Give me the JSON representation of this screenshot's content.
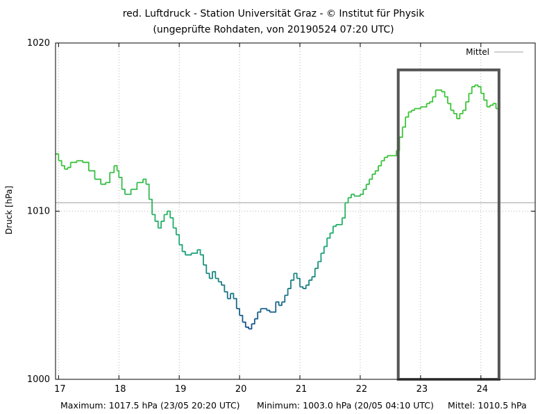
{
  "colors": {
    "background": "#ffffff",
    "axis": "#000000",
    "grid": "#a0a0a0",
    "mean_line": "#a0a0a0",
    "highlight_box": "#555555",
    "line_low": "#1a4f8f",
    "line_mid": "#1aa877",
    "line_high": "#3ec43a"
  },
  "chart_data": {
    "type": "line",
    "title": "red. Luftdruck - Station Universität Graz -  © Institut für Physik",
    "subtitle": "(ungeprüfte Rohdaten, von 20190524 07:20 UTC)",
    "xlabel": "",
    "ylabel": "Druck [hPa]",
    "xlim": [
      16.95,
      24.9
    ],
    "ylim": [
      1000,
      1020
    ],
    "x_ticks": [
      17,
      18,
      19,
      20,
      21,
      22,
      23,
      24
    ],
    "y_ticks": [
      1000,
      1010,
      1020
    ],
    "grid": true,
    "legend": {
      "position": "top-right",
      "entries": [
        "Mittel"
      ]
    },
    "mean_value": 1010.5,
    "series": [
      {
        "points": [
          [
            16.95,
            1013.4
          ],
          [
            17.0,
            1013.0
          ],
          [
            17.05,
            1012.7
          ],
          [
            17.1,
            1012.5
          ],
          [
            17.15,
            1012.6
          ],
          [
            17.2,
            1012.9
          ],
          [
            17.3,
            1013.0
          ],
          [
            17.4,
            1012.9
          ],
          [
            17.5,
            1012.4
          ],
          [
            17.6,
            1011.9
          ],
          [
            17.7,
            1011.6
          ],
          [
            17.78,
            1011.7
          ],
          [
            17.85,
            1012.3
          ],
          [
            17.92,
            1012.7
          ],
          [
            17.97,
            1012.4
          ],
          [
            18.0,
            1012.0
          ],
          [
            18.05,
            1011.3
          ],
          [
            18.1,
            1011.0
          ],
          [
            18.2,
            1011.3
          ],
          [
            18.3,
            1011.7
          ],
          [
            18.4,
            1011.9
          ],
          [
            18.45,
            1011.6
          ],
          [
            18.5,
            1010.7
          ],
          [
            18.55,
            1009.8
          ],
          [
            18.6,
            1009.4
          ],
          [
            18.65,
            1009.0
          ],
          [
            18.7,
            1009.4
          ],
          [
            18.75,
            1009.8
          ],
          [
            18.8,
            1010.0
          ],
          [
            18.85,
            1009.6
          ],
          [
            18.9,
            1009.0
          ],
          [
            18.95,
            1008.6
          ],
          [
            19.0,
            1008.0
          ],
          [
            19.05,
            1007.6
          ],
          [
            19.1,
            1007.4
          ],
          [
            19.2,
            1007.5
          ],
          [
            19.3,
            1007.7
          ],
          [
            19.35,
            1007.4
          ],
          [
            19.4,
            1006.8
          ],
          [
            19.45,
            1006.3
          ],
          [
            19.5,
            1006.0
          ],
          [
            19.55,
            1006.4
          ],
          [
            19.6,
            1006.0
          ],
          [
            19.65,
            1005.8
          ],
          [
            19.7,
            1005.6
          ],
          [
            19.75,
            1005.2
          ],
          [
            19.8,
            1004.8
          ],
          [
            19.85,
            1005.1
          ],
          [
            19.9,
            1004.8
          ],
          [
            19.95,
            1004.2
          ],
          [
            20.0,
            1003.8
          ],
          [
            20.05,
            1003.4
          ],
          [
            20.1,
            1003.1
          ],
          [
            20.15,
            1003.0
          ],
          [
            20.2,
            1003.3
          ],
          [
            20.25,
            1003.6
          ],
          [
            20.3,
            1004.0
          ],
          [
            20.35,
            1004.2
          ],
          [
            20.45,
            1004.1
          ],
          [
            20.5,
            1004.0
          ],
          [
            20.55,
            1004.0
          ],
          [
            20.6,
            1004.6
          ],
          [
            20.65,
            1004.4
          ],
          [
            20.7,
            1004.6
          ],
          [
            20.75,
            1005.0
          ],
          [
            20.8,
            1005.4
          ],
          [
            20.85,
            1005.9
          ],
          [
            20.9,
            1006.3
          ],
          [
            20.95,
            1006.0
          ],
          [
            21.0,
            1005.5
          ],
          [
            21.05,
            1005.4
          ],
          [
            21.1,
            1005.6
          ],
          [
            21.15,
            1005.9
          ],
          [
            21.2,
            1006.1
          ],
          [
            21.25,
            1006.6
          ],
          [
            21.3,
            1007.0
          ],
          [
            21.35,
            1007.5
          ],
          [
            21.4,
            1007.9
          ],
          [
            21.45,
            1008.4
          ],
          [
            21.5,
            1008.7
          ],
          [
            21.55,
            1009.1
          ],
          [
            21.6,
            1009.2
          ],
          [
            21.65,
            1009.2
          ],
          [
            21.7,
            1009.6
          ],
          [
            21.75,
            1010.5
          ],
          [
            21.8,
            1010.8
          ],
          [
            21.85,
            1011.0
          ],
          [
            21.9,
            1010.9
          ],
          [
            21.95,
            1010.9
          ],
          [
            22.0,
            1011.0
          ],
          [
            22.05,
            1011.3
          ],
          [
            22.1,
            1011.6
          ],
          [
            22.15,
            1011.9
          ],
          [
            22.2,
            1012.2
          ],
          [
            22.25,
            1012.4
          ],
          [
            22.3,
            1012.7
          ],
          [
            22.35,
            1013.0
          ],
          [
            22.4,
            1013.2
          ],
          [
            22.45,
            1013.3
          ],
          [
            22.5,
            1013.3
          ],
          [
            22.55,
            1013.3
          ],
          [
            22.6,
            1013.6
          ],
          [
            22.65,
            1014.4
          ],
          [
            22.7,
            1015.0
          ],
          [
            22.75,
            1015.6
          ],
          [
            22.8,
            1015.9
          ],
          [
            22.85,
            1016.0
          ],
          [
            22.9,
            1016.1
          ],
          [
            22.95,
            1016.1
          ],
          [
            23.0,
            1016.2
          ],
          [
            23.05,
            1016.2
          ],
          [
            23.1,
            1016.4
          ],
          [
            23.15,
            1016.5
          ],
          [
            23.2,
            1016.8
          ],
          [
            23.25,
            1017.2
          ],
          [
            23.3,
            1017.2
          ],
          [
            23.35,
            1017.1
          ],
          [
            23.4,
            1016.8
          ],
          [
            23.45,
            1016.4
          ],
          [
            23.5,
            1016.0
          ],
          [
            23.55,
            1015.8
          ],
          [
            23.6,
            1015.5
          ],
          [
            23.65,
            1015.8
          ],
          [
            23.7,
            1016.0
          ],
          [
            23.75,
            1016.5
          ],
          [
            23.8,
            1017.0
          ],
          [
            23.85,
            1017.4
          ],
          [
            23.9,
            1017.5
          ],
          [
            23.95,
            1017.4
          ],
          [
            24.0,
            1017.0
          ],
          [
            24.05,
            1016.6
          ],
          [
            24.1,
            1016.2
          ],
          [
            24.15,
            1016.3
          ],
          [
            24.2,
            1016.4
          ],
          [
            24.25,
            1016.1
          ],
          [
            24.3,
            1016.0
          ]
        ]
      }
    ],
    "highlight_box": {
      "x_range": [
        22.63,
        24.3
      ],
      "y_range": [
        1000,
        1018.4
      ]
    }
  },
  "footer": {
    "maximum": "Maximum: 1017.5 hPa (23/05 20:20 UTC)",
    "minimum": "Minimum: 1003.0 hPa (20/05 04:10 UTC)",
    "mittel": "Mittel: 1010.5 hPa"
  }
}
